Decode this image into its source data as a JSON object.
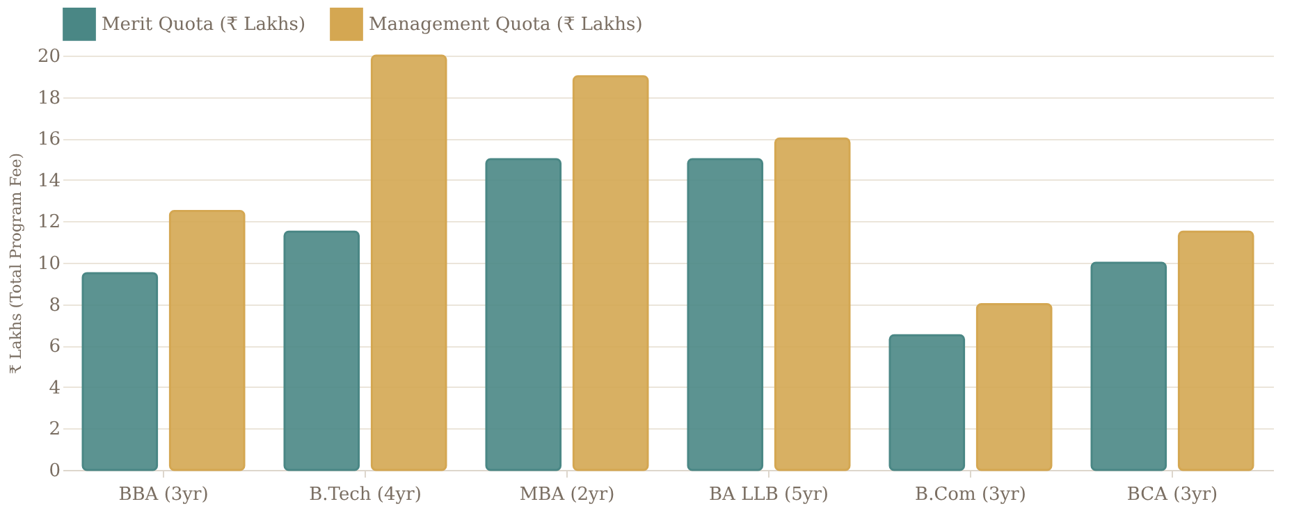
{
  "chart_data": {
    "type": "bar",
    "ylabel": "₹ Lakhs (Total Program Fee)",
    "categories": [
      "BBA (3yr)",
      "B.Tech (4yr)",
      "MBA (2yr)",
      "BA LLB (5yr)",
      "B.Com (3yr)",
      "BCA (3yr)"
    ],
    "series": [
      {
        "name": "Merit Quota (₹ Lakhs)",
        "color": "#4a8785",
        "values": [
          9.5,
          11.5,
          15,
          15,
          6.5,
          10
        ]
      },
      {
        "name": "Management Quota (₹ Lakhs)",
        "color": "#d4a752",
        "values": [
          12.5,
          20,
          19,
          16,
          8,
          11.5
        ]
      }
    ],
    "ylim": [
      0,
      20
    ],
    "yticks": [
      0,
      2,
      4,
      6,
      8,
      10,
      12,
      14,
      16,
      18,
      20
    ],
    "grid": "y",
    "legend": "top"
  }
}
